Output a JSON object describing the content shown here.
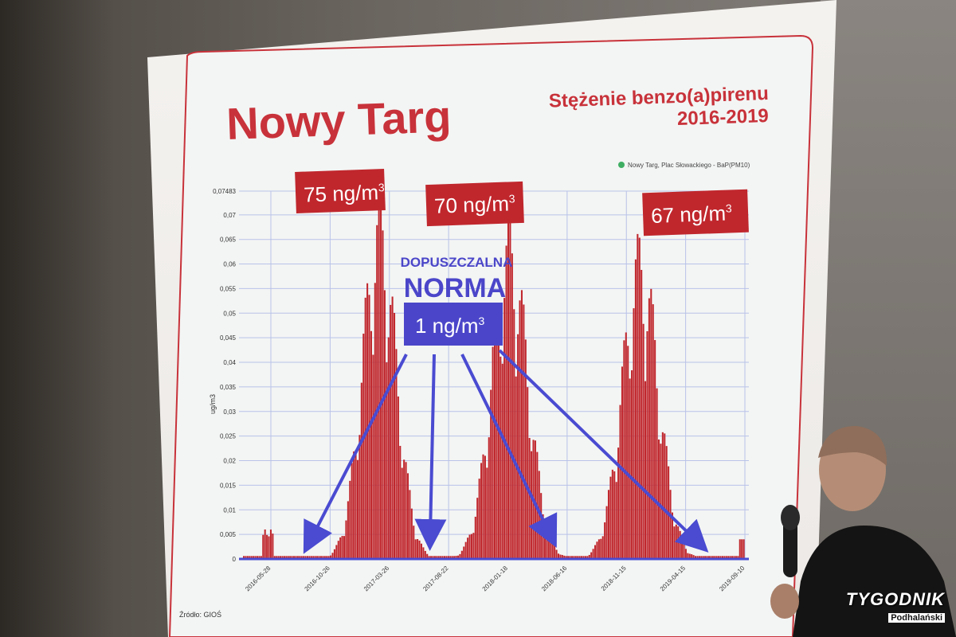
{
  "slide": {
    "title": "Nowy Targ",
    "subtitle_line1": "Stężenie benzo(a)pirenu",
    "subtitle_line2": "2016-2019",
    "legend": "Nowy Targ, Plac Słowackiego - BaP(PM10)",
    "y_axis_label": "ug/m3",
    "source": "Źródło: GIOŚ",
    "peak_labels": [
      "75 ng/m",
      "70 ng/m",
      "67 ng/m"
    ],
    "peak_label_sup": "3",
    "norma_line1": "DOPUSZCZALNA",
    "norma_line2": "NORMA",
    "norma_value": "1 ng/m",
    "norma_value_sup": "3"
  },
  "colors": {
    "title_red": "#c8323a",
    "bar_red": "#c0272d",
    "label_box": "#c0272d",
    "norma_blue": "#4b46c9",
    "norma_box": "#4b46c9",
    "grid": "#b9c2e8",
    "arrow": "#4a4bd1"
  },
  "chart_data": {
    "type": "bar",
    "title": "Stężenie benzo(a)pirenu 2016-2019",
    "xlabel": "",
    "ylabel": "ug/m3",
    "ylim": [
      0,
      0.07483
    ],
    "y_ticks": [
      "0",
      "0,005",
      "0,01",
      "0,015",
      "0,02",
      "0,025",
      "0,03",
      "0,035",
      "0,04",
      "0,045",
      "0,05",
      "0,055",
      "0,06",
      "0,065",
      "0,07",
      "0,07483"
    ],
    "x_ticks": [
      "2016-05-28",
      "2016-10-26",
      "2017-03-26",
      "2017-08-22",
      "2018-01-18",
      "2018-06-16",
      "2018-11-15",
      "2019-04-15",
      "2019-09-10"
    ],
    "series": [
      {
        "name": "Nowy Targ, Plac Słowackiego - BaP(PM10)",
        "peaks_ng_m3": [
          75,
          70,
          67
        ],
        "peak_dates_approx": [
          "2017-01",
          "2018-01",
          "2019-01"
        ]
      }
    ],
    "threshold": {
      "label": "DOPUSZCZALNA NORMA 1 ng/m3",
      "value": 0.001
    },
    "grid": true,
    "legend_position": "top-right"
  },
  "watermark": {
    "top": "TYGODNIK",
    "bottom": "Podhalański"
  }
}
